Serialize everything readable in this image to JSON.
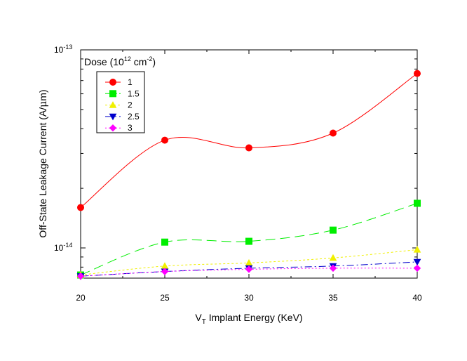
{
  "chart_data": {
    "type": "line",
    "xlabel": "V",
    "xlabel_sub": "T",
    "xlabel_rest": " Implant Energy (KeV)",
    "ylabel": "Off-State Leakage Current (A/",
    "ylabel_mu": "μ",
    "ylabel_rest": "m)",
    "xlim": [
      20,
      40
    ],
    "ylim": [
      6.5e-15,
      1e-13
    ],
    "yscale": "log",
    "x_ticks": [
      "20",
      "25",
      "30",
      "35",
      "40"
    ],
    "y_ticks": [
      {
        "base": "10",
        "exp": "-13",
        "value": 1e-13
      },
      {
        "base": "10",
        "exp": "-14",
        "value": 1e-14
      }
    ],
    "legend_title": "Dose (10",
    "legend_title_exp": "12",
    "legend_title_mid": " cm",
    "legend_title_exp2": "-2",
    "legend_title_end": ")",
    "legend_position": "top-left",
    "x": [
      20,
      25,
      30,
      35,
      40
    ],
    "series": [
      {
        "name": "1",
        "color": "#ff0000",
        "marker": "circle",
        "dash": "",
        "values": [
          1.6e-14,
          3.5e-14,
          3.2e-14,
          3.8e-14,
          7.6e-14
        ]
      },
      {
        "name": "1.5",
        "color": "#00ee00",
        "marker": "square",
        "dash": "14,7",
        "values": [
          7.3e-15,
          1.07e-14,
          1.08e-14,
          1.23e-14,
          1.68e-14
        ]
      },
      {
        "name": "2",
        "color": "#f0f000",
        "marker": "triangle-up",
        "dash": "3,3",
        "values": [
          7.3e-15,
          8.1e-15,
          8.4e-15,
          8.9e-15,
          9.8e-15
        ]
      },
      {
        "name": "2.5",
        "color": "#0000cc",
        "marker": "triangle-down",
        "dash": "10,4,2,4",
        "values": [
          7.2e-15,
          7.6e-15,
          7.9e-15,
          8.1e-15,
          8.5e-15
        ]
      },
      {
        "name": "3",
        "color": "#ff00ff",
        "marker": "diamond",
        "dash": "2,3",
        "values": [
          7.2e-15,
          7.6e-15,
          7.8e-15,
          7.9e-15,
          7.9e-15
        ]
      }
    ]
  }
}
